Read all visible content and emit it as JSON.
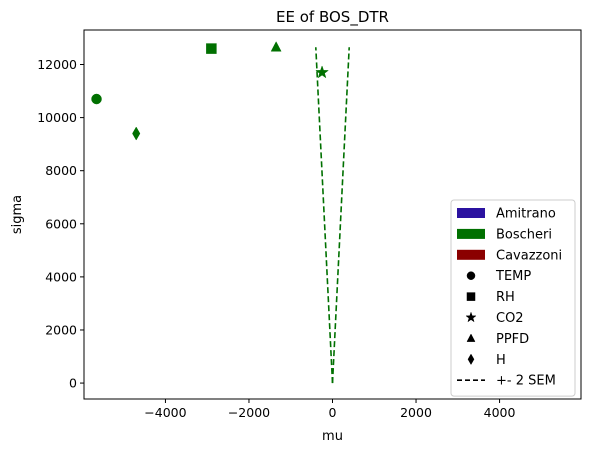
{
  "chart_data": {
    "type": "scatter",
    "title": "EE of BOS_DTR",
    "xlabel": "mu",
    "ylabel": "sigma",
    "xlim": [
      -5950,
      5950
    ],
    "ylim": [
      -600,
      13300
    ],
    "xticks": [
      -4000,
      -2000,
      0,
      2000,
      4000
    ],
    "xtick_labels": [
      "−4000",
      "−2000",
      "0",
      "2000",
      "4000"
    ],
    "yticks": [
      0,
      2000,
      4000,
      6000,
      8000,
      10000,
      12000
    ],
    "ytick_labels": [
      "0",
      "2000",
      "4000",
      "6000",
      "8000",
      "10000",
      "12000"
    ],
    "grid": false,
    "series": [
      {
        "name": "Boscheri",
        "color": "#007000",
        "points": [
          {
            "variable": "TEMP",
            "marker": "circle",
            "x": -5650,
            "y": 10700
          },
          {
            "variable": "RH",
            "marker": "square",
            "x": -2900,
            "y": 12600
          },
          {
            "variable": "CO2",
            "marker": "star",
            "x": -250,
            "y": 11700
          },
          {
            "variable": "PPFD",
            "marker": "triangle",
            "x": -1350,
            "y": 12650
          },
          {
            "variable": "H",
            "marker": "diamond",
            "x": -4700,
            "y": 9400
          }
        ],
        "sem_lines": [
          {
            "x": [
              0,
              -400
            ],
            "y": [
              0,
              12650
            ]
          },
          {
            "x": [
              0,
              400
            ],
            "y": [
              0,
              12650
            ]
          }
        ]
      }
    ],
    "legend": {
      "position": "lower right",
      "entries": [
        {
          "label": "Amitrano",
          "kind": "patch",
          "color": "#2b12a0"
        },
        {
          "label": "Boscheri",
          "kind": "patch",
          "color": "#007000"
        },
        {
          "label": "Cavazzoni",
          "kind": "patch",
          "color": "#8b0000"
        },
        {
          "label": "TEMP",
          "kind": "marker",
          "marker": "circle",
          "color": "#000000"
        },
        {
          "label": "RH",
          "kind": "marker",
          "marker": "square",
          "color": "#000000"
        },
        {
          "label": "CO2",
          "kind": "marker",
          "marker": "star",
          "color": "#000000"
        },
        {
          "label": "PPFD",
          "kind": "marker",
          "marker": "triangle",
          "color": "#000000"
        },
        {
          "label": "H",
          "kind": "marker",
          "marker": "diamond",
          "color": "#000000"
        },
        {
          "label": "+- 2 SEM",
          "kind": "dashed-line",
          "color": "#000000"
        }
      ]
    }
  }
}
